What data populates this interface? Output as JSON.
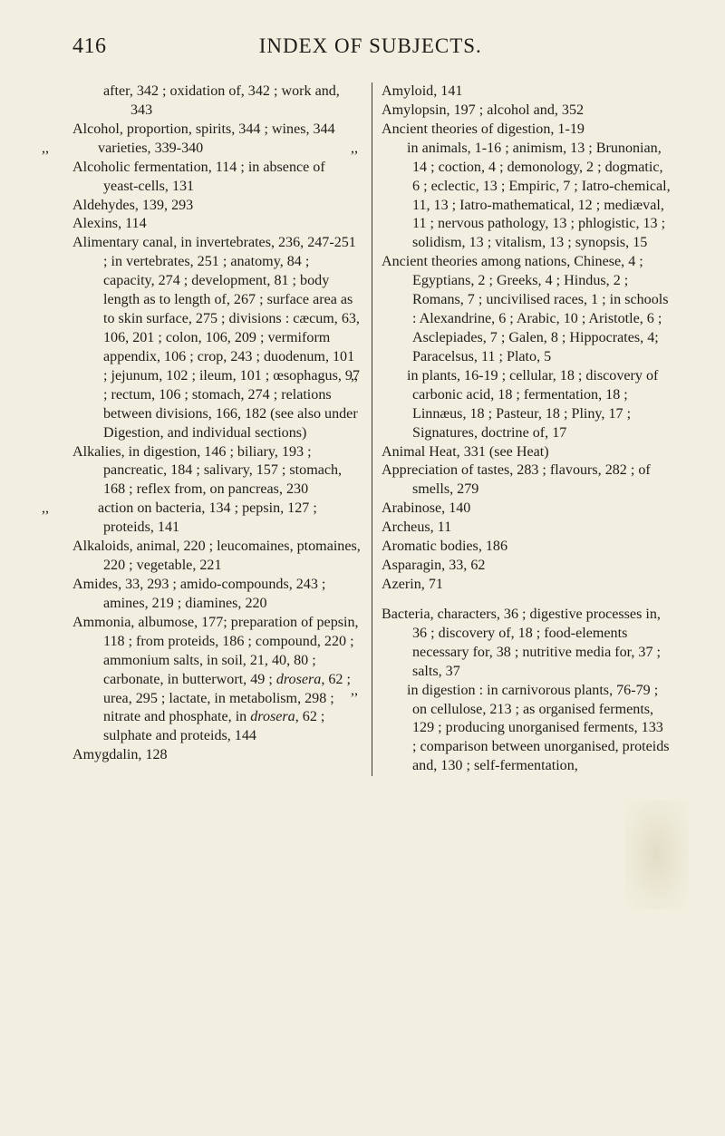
{
  "page_number": "416",
  "heading": "INDEX OF SUBJECTS.",
  "entries": [
    {
      "html": "after, 342 ; oxidation of, 342 ; work and, 343",
      "continuation": true
    },
    {
      "html": "Alcohol, proportion, spirits, 344 ; wines, 344"
    },
    {
      "html": "<span class=\"ditto\">,,</span> varieties, 339-340"
    },
    {
      "html": "Alcoholic fermentation, 114 ; in absence of yeast-cells, 131"
    },
    {
      "html": "Aldehydes, 139, 293"
    },
    {
      "html": "Alexins, 114"
    },
    {
      "html": "Alimentary canal, in invertebrates, 236, 247-251 ; in vertebrates, 251 ; anatomy, 84 ; capacity, 274 ; development, 81 ; body length as to length of, 267 ; surface area as to skin surface, 275 ; divisions : cæcum, 63, 106, 201 ; colon, 106, 209 ; vermiform appendix, 106 ; crop, 243 ; duodenum, 101 ; jejunum, 102 ; ileum, 101 ; œsophagus, 97 ; rectum, 106 ; stomach, 274 ; relations between divisions, 166, 182 (see also under Digestion, and individual sections)"
    },
    {
      "html": "Alkalies, in digestion, 146 ; biliary, 193 ; pancreatic, 184 ; salivary, 157 ; stomach, 168 ; reflex from, on pancreas, 230"
    },
    {
      "html": "<span class=\"ditto\">,,</span> action on bacteria, 134 ; pepsin, 127 ; proteids, 141"
    },
    {
      "html": "Alkaloids, animal, 220 ; leucomaines, ptomaines, 220 ; vegetable, 221"
    },
    {
      "html": "Amides, 33, 293 ; amido-compounds, 243 ; amines, 219 ; diamines, 220"
    },
    {
      "html": "Ammonia, albumose, 177; preparation of pepsin, 118 ; from proteids, 186 ; compound, 220 ; ammonium salts, in soil, 21, 40, 80 ; carbonate, in butterwort, 49 ; <i>drosera</i>, 62 ; urea, 295 ; lactate, in metabolism, 298 ; nitrate and phosphate, in <i>drosera</i>, 62 ; sulphate and proteids, 144"
    },
    {
      "html": "Amygdalin, 128"
    },
    {
      "html": "Amyloid, 141"
    },
    {
      "html": "Amylopsin, 197 ; alcohol and, 352"
    },
    {
      "html": "Ancient theories of digestion, 1-19"
    },
    {
      "html": "<span class=\"ditto\">,,</span> in animals, 1-16 ; animism, 13 ; Brunonian, 14 ; coction, 4 ; demonology, 2 ; dogmatic, 6 ; eclectic, 13 ; Empiric, 7 ; Iatro-chemical, 11, 13 ; Iatro-mathematical, 12 ; mediæval, 11 ; nervous pathology, 13 ; phlogistic, 13 ; solidism, 13 ; vitalism, 13 ; synopsis, 15",
      "allowBreak": true
    },
    {
      "html": "Ancient theories among nations, Chinese, 4 ; Egyptians, 2 ; Greeks, 4 ; Hindus, 2 ; Romans, 7 ; uncivilised races, 1 ; in schools : Alexandrine, 6 ; Arabic, 10 ; Aristotle, 6 ; Asclepiades, 7 ; Galen, 8 ; Hippocrates, 4; Paracelsus, 11 ; Plato, 5"
    },
    {
      "html": "<span class=\"ditto\">,,</span> in plants, 16-19 ; cellular, 18 ; discovery of carbonic acid, 18 ; fermentation, 18 ; Linnæus, 18 ; Pasteur, 18 ; Pliny, 17 ; Signatures, doctrine of, 17"
    },
    {
      "html": "Animal Heat, 331 (see Heat)"
    },
    {
      "html": "Appreciation of tastes, 283 ; flavours, 282 ; of smells, 279"
    },
    {
      "html": "Arabinose, 140"
    },
    {
      "html": "Archeus, 11"
    },
    {
      "html": "Aromatic bodies, 186"
    },
    {
      "html": "Asparagin, 33, 62"
    },
    {
      "html": "Azerin, 71"
    },
    {
      "html": "&nbsp;",
      "spacer": true
    },
    {
      "html": "Bacteria, characters, 36 ; digestive processes in, 36 ; discovery of, 18 ; food-elements necessary for, 38 ; nutritive media for, 37 ; salts, 37"
    },
    {
      "html": "<span class=\"ditto\">,,</span> in digestion : in carnivorous plants, 76-79 ; on cellulose, 213 ; as organised ferments, 129 ; producing unorganised ferments, 133 ; comparison between unorganised, proteids and, 130 ; self-fermentation,"
    }
  ]
}
